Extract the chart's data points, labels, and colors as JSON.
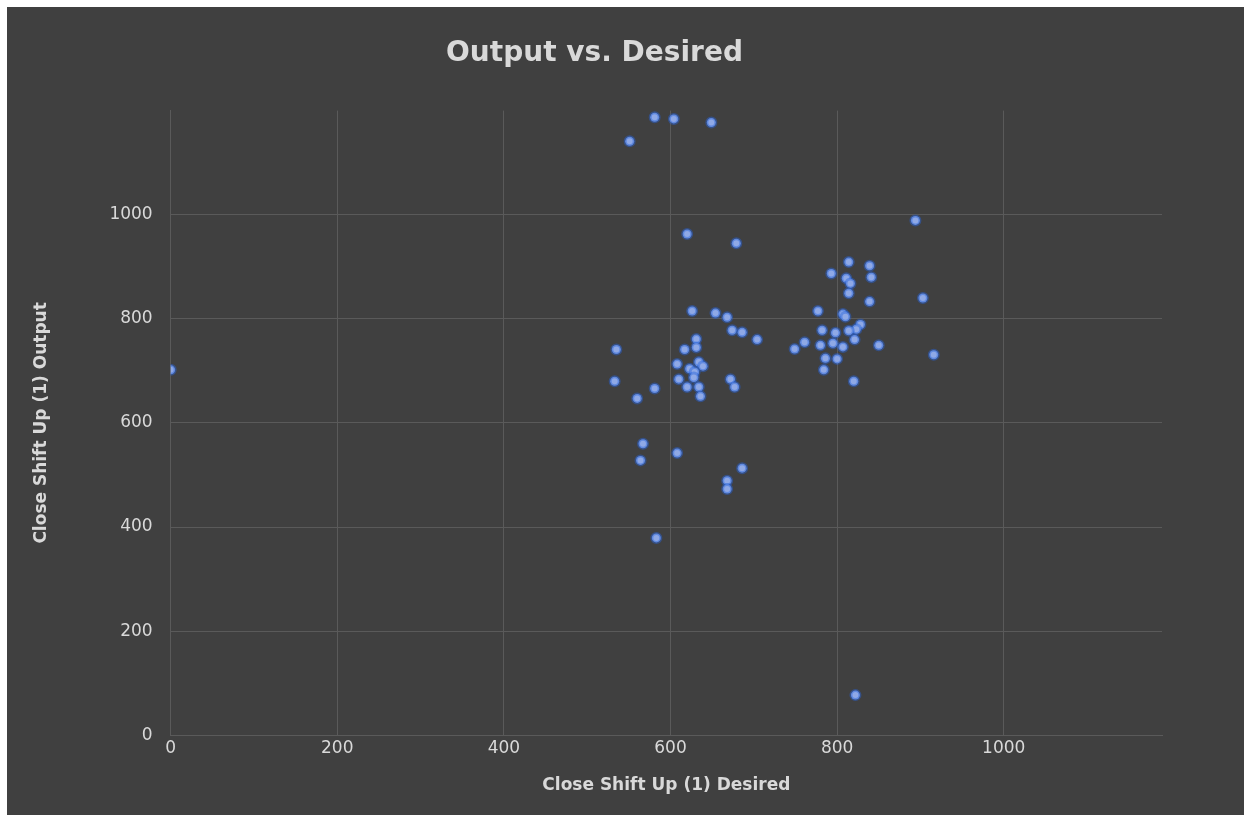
{
  "chart_data": {
    "type": "scatter",
    "title": "Output vs. Desired",
    "xlabel": "Close Shift Up (1) Desired",
    "ylabel": "Close Shift Up (1) Output",
    "xlim": [
      0,
      1190
    ],
    "ylim": [
      0,
      1200
    ],
    "xticks": [
      0,
      200,
      400,
      600,
      800,
      1000
    ],
    "yticks": [
      0,
      200,
      400,
      600,
      800,
      1000
    ],
    "grid": true,
    "marker": "circle",
    "legend": false,
    "series": [
      {
        "color": "#8fa9e6",
        "x": [
          581,
          604,
          649,
          551,
          620,
          679,
          626,
          654,
          668,
          674,
          686,
          704,
          535,
          631,
          631,
          617,
          608,
          634,
          639,
          623,
          629,
          628,
          610,
          533,
          620,
          634,
          636,
          672,
          677,
          581,
          560,
          567,
          564,
          608,
          686,
          668,
          668,
          583,
          894,
          814,
          839,
          793,
          841,
          811,
          816,
          814,
          839,
          903,
          777,
          807,
          810,
          828,
          823,
          814,
          782,
          798,
          821,
          850,
          761,
          749,
          780,
          795,
          807,
          786,
          800,
          784,
          916,
          820,
          0,
          822
        ],
        "values": [
          1187,
          1184,
          1177,
          1141,
          963,
          945,
          815,
          811,
          803,
          778,
          774,
          760,
          741,
          761,
          745,
          741,
          713,
          717,
          709,
          704,
          698,
          687,
          684,
          680,
          669,
          669,
          651,
          684,
          669,
          666,
          647,
          560,
          528,
          542,
          513,
          489,
          473,
          379,
          989,
          909,
          902,
          887,
          880,
          878,
          868,
          849,
          833,
          840,
          815,
          809,
          804,
          789,
          780,
          777,
          778,
          773,
          760,
          749,
          755,
          742,
          749,
          753,
          746,
          724,
          723,
          702,
          731,
          680,
          702,
          77
        ]
      }
    ]
  }
}
